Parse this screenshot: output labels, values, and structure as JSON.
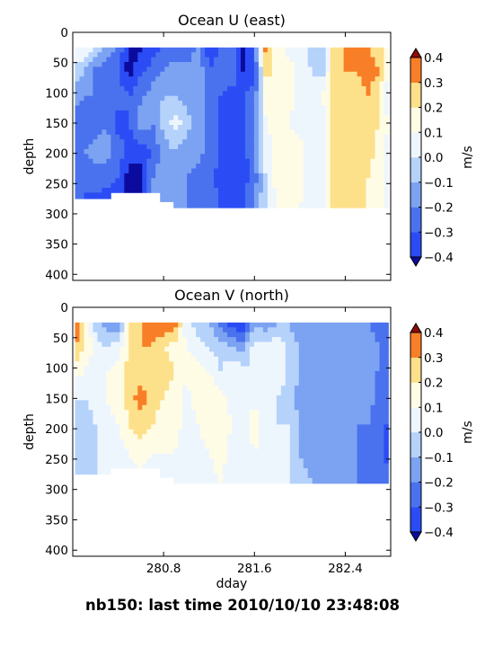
{
  "footer_text": "nb150: last time 2010/10/10 23:48:08",
  "colormap": [
    "#2b4cf5",
    "#4a72ee",
    "#7ca2f2",
    "#b5d2fb",
    "#eef6fd",
    "#fffce6",
    "#fde08a",
    "#fdb64f",
    "#f87f27",
    "#e64614"
  ],
  "colormap_under": "#0b0b9e",
  "colormap_over": "#8e0c0c",
  "chart_data": [
    {
      "type": "heatmap",
      "title": "Ocean U (east)",
      "xlabel": "",
      "ylabel": "depth",
      "xlim": [
        280.0,
        282.8
      ],
      "ylim": [
        410,
        0
      ],
      "x_ticks": [
        280.8,
        281.6,
        282.4
      ],
      "x_tick_labels": [
        "",
        "",
        ""
      ],
      "y_ticks": [
        0,
        50,
        100,
        150,
        200,
        250,
        300,
        350,
        400
      ],
      "colorbar": {
        "label": "m/s",
        "levels": [
          -0.4,
          -0.3,
          -0.2,
          -0.1,
          0.0,
          0.1,
          0.2,
          0.3,
          0.4
        ],
        "extend": "both",
        "tick_labels": [
          "−0.4",
          "−0.3",
          "−0.2",
          "−0.1",
          "0.0",
          "0.1",
          "0.2",
          "0.3",
          "0.4"
        ]
      },
      "x_range_with_data": [
        280.02,
        282.78
      ],
      "depth_top": 25,
      "bottom_depth": [
        [
          280.0,
          275
        ],
        [
          280.3,
          275
        ],
        [
          280.32,
          265
        ],
        [
          280.7,
          265
        ],
        [
          280.75,
          280
        ],
        [
          280.9,
          290
        ],
        [
          281.3,
          290
        ],
        [
          281.5,
          290
        ],
        [
          282.0,
          290
        ],
        [
          282.5,
          290
        ],
        [
          282.8,
          290
        ]
      ],
      "samples": [
        {
          "x": 280.0,
          "z": [
            0.0,
            0.0,
            -0.15,
            -0.25,
            -0.28,
            -0.25,
            -0.3
          ]
        },
        {
          "x": 280.1,
          "z": [
            0.15,
            -0.1,
            -0.2,
            -0.3,
            -0.2,
            -0.3,
            -0.3
          ]
        },
        {
          "x": 280.2,
          "z": [
            0.0,
            -0.25,
            -0.2,
            -0.25,
            -0.15,
            -0.25,
            -0.35
          ]
        },
        {
          "x": 280.3,
          "z": [
            -0.15,
            -0.25,
            -0.3,
            -0.2,
            -0.15,
            -0.25,
            -0.4
          ]
        },
        {
          "x": 280.4,
          "z": [
            -0.2,
            -0.3,
            -0.25,
            -0.35,
            -0.25,
            -0.3,
            -0.4
          ]
        },
        {
          "x": 280.5,
          "z": [
            -0.45,
            -0.45,
            -0.3,
            -0.3,
            -0.35,
            -0.45,
            -0.45
          ]
        },
        {
          "x": 280.6,
          "z": [
            -0.42,
            -0.32,
            -0.22,
            -0.12,
            -0.35,
            -0.45,
            -0.35
          ]
        },
        {
          "x": 280.7,
          "z": [
            -0.35,
            -0.25,
            -0.15,
            -0.2,
            -0.3,
            -0.2,
            -0.2
          ]
        },
        {
          "x": 280.8,
          "z": [
            -0.3,
            -0.2,
            -0.1,
            -0.05,
            -0.15,
            -0.15,
            -0.15
          ]
        },
        {
          "x": 280.9,
          "z": [
            -0.25,
            -0.15,
            -0.1,
            0.05,
            -0.1,
            -0.15,
            -0.2
          ]
        },
        {
          "x": 281.0,
          "z": [
            -0.3,
            -0.15,
            -0.15,
            -0.05,
            -0.15,
            -0.2,
            -0.2
          ]
        },
        {
          "x": 281.1,
          "z": [
            -0.2,
            -0.1,
            -0.12,
            -0.15,
            -0.15,
            -0.25,
            -0.2
          ]
        },
        {
          "x": 281.2,
          "z": [
            -0.35,
            -0.3,
            -0.25,
            -0.25,
            -0.25,
            -0.25,
            -0.25
          ]
        },
        {
          "x": 281.3,
          "z": [
            -0.3,
            -0.25,
            -0.3,
            -0.3,
            -0.3,
            -0.35,
            -0.3
          ]
        },
        {
          "x": 281.4,
          "z": [
            -0.25,
            -0.2,
            -0.35,
            -0.35,
            -0.35,
            -0.4,
            -0.3
          ]
        },
        {
          "x": 281.5,
          "z": [
            -0.45,
            -0.4,
            -0.3,
            -0.35,
            -0.35,
            -0.35,
            -0.3
          ]
        },
        {
          "x": 281.6,
          "z": [
            -0.25,
            -0.35,
            -0.25,
            -0.2,
            -0.2,
            -0.25,
            -0.2
          ]
        },
        {
          "x": 281.7,
          "z": [
            0.35,
            0.25,
            0.15,
            0.1,
            0.05,
            0.0,
            0.0
          ]
        },
        {
          "x": 281.8,
          "z": [
            0.15,
            0.15,
            0.15,
            0.15,
            0.12,
            0.15,
            0.1
          ]
        },
        {
          "x": 281.9,
          "z": [
            0.05,
            0.15,
            0.15,
            0.1,
            0.15,
            0.15,
            0.15
          ]
        },
        {
          "x": 282.0,
          "z": [
            0.1,
            0.05,
            0.05,
            0.05,
            0.15,
            0.15,
            0.1
          ]
        },
        {
          "x": 282.1,
          "z": [
            -0.05,
            0.0,
            0.05,
            0.05,
            0.0,
            0.05,
            0.05
          ]
        },
        {
          "x": 282.2,
          "z": [
            -0.1,
            -0.05,
            0.1,
            0.05,
            0.05,
            0.0,
            0.0
          ]
        },
        {
          "x": 282.3,
          "z": [
            0.3,
            0.25,
            0.3,
            0.25,
            0.25,
            0.25,
            0.25
          ]
        },
        {
          "x": 282.4,
          "z": [
            0.3,
            0.3,
            0.25,
            0.25,
            0.25,
            0.25,
            0.25
          ]
        },
        {
          "x": 282.5,
          "z": [
            0.35,
            0.3,
            0.25,
            0.25,
            0.25,
            0.25,
            0.2
          ]
        },
        {
          "x": 282.6,
          "z": [
            0.3,
            0.35,
            0.3,
            0.25,
            0.25,
            0.2,
            0.2
          ]
        },
        {
          "x": 282.7,
          "z": [
            0.25,
            0.3,
            0.2,
            0.2,
            0.15,
            0.15,
            0.15
          ]
        },
        {
          "x": 282.8,
          "z": [
            0.05,
            0.0,
            0.0,
            0.05,
            0.05,
            0.05,
            0.05
          ]
        }
      ],
      "sample_depths": [
        25,
        65,
        105,
        150,
        195,
        240,
        290
      ]
    },
    {
      "type": "heatmap",
      "title": "Ocean V (north)",
      "xlabel": "dday",
      "ylabel": "depth",
      "xlim": [
        280.0,
        282.8
      ],
      "ylim": [
        410,
        0
      ],
      "x_ticks": [
        280.8,
        281.6,
        282.4
      ],
      "x_tick_labels": [
        "280.8",
        "281.6",
        "282.4"
      ],
      "y_ticks": [
        0,
        50,
        100,
        150,
        200,
        250,
        300,
        350,
        400
      ],
      "colorbar": {
        "label": "m/s",
        "levels": [
          -0.4,
          -0.3,
          -0.2,
          -0.1,
          0.0,
          0.1,
          0.2,
          0.3,
          0.4
        ],
        "extend": "both",
        "tick_labels": [
          "−0.4",
          "−0.3",
          "−0.2",
          "−0.1",
          "0.0",
          "0.1",
          "0.2",
          "0.3",
          "0.4"
        ]
      },
      "x_range_with_data": [
        280.02,
        282.78
      ],
      "depth_top": 25,
      "bottom_depth": [
        [
          280.0,
          275
        ],
        [
          280.3,
          275
        ],
        [
          280.32,
          265
        ],
        [
          280.7,
          265
        ],
        [
          280.75,
          280
        ],
        [
          280.9,
          290
        ],
        [
          281.3,
          290
        ],
        [
          281.5,
          290
        ],
        [
          282.0,
          290
        ],
        [
          282.5,
          290
        ],
        [
          282.8,
          290
        ]
      ],
      "samples": [
        {
          "x": 280.0,
          "z": [
            0.4,
            0.35,
            0.15,
            0.0,
            -0.05,
            -0.1,
            -0.05
          ]
        },
        {
          "x": 280.1,
          "z": [
            0.25,
            0.2,
            0.1,
            0.0,
            -0.1,
            0.0,
            0.0
          ]
        },
        {
          "x": 280.2,
          "z": [
            -0.05,
            0.05,
            0.05,
            0.05,
            0.0,
            0.0,
            0.0
          ]
        },
        {
          "x": 280.3,
          "z": [
            -0.15,
            0.0,
            0.1,
            0.1,
            0.05,
            0.05,
            0.0
          ]
        },
        {
          "x": 280.4,
          "z": [
            -0.2,
            0.05,
            0.15,
            0.15,
            0.1,
            0.05,
            0.0
          ]
        },
        {
          "x": 280.5,
          "z": [
            0.2,
            0.2,
            0.25,
            0.25,
            0.2,
            0.1,
            0.05
          ]
        },
        {
          "x": 280.6,
          "z": [
            0.3,
            0.3,
            0.25,
            0.35,
            0.25,
            0.15,
            0.05
          ]
        },
        {
          "x": 280.7,
          "z": [
            0.35,
            0.3,
            0.3,
            0.25,
            0.2,
            0.1,
            0.05
          ]
        },
        {
          "x": 280.8,
          "z": [
            0.4,
            0.2,
            0.25,
            0.2,
            0.15,
            0.1,
            0.05
          ]
        },
        {
          "x": 280.9,
          "z": [
            0.35,
            0.15,
            0.2,
            0.15,
            0.15,
            0.1,
            0.1
          ]
        },
        {
          "x": 281.0,
          "z": [
            0.05,
            0.1,
            0.15,
            0.05,
            0.05,
            0.05,
            0.0
          ]
        },
        {
          "x": 281.1,
          "z": [
            -0.05,
            0.05,
            0.15,
            0.15,
            0.1,
            0.05,
            0.05
          ]
        },
        {
          "x": 281.2,
          "z": [
            -0.1,
            0.0,
            0.1,
            0.2,
            0.15,
            0.1,
            0.05
          ]
        },
        {
          "x": 281.3,
          "z": [
            -0.25,
            -0.05,
            0.0,
            0.15,
            0.2,
            0.15,
            0.1
          ]
        },
        {
          "x": 281.4,
          "z": [
            -0.35,
            -0.1,
            0.1,
            0.05,
            0.1,
            0.05,
            0.05
          ]
        },
        {
          "x": 281.5,
          "z": [
            -0.4,
            -0.15,
            0.05,
            0.0,
            0.05,
            0.05,
            0.0
          ]
        },
        {
          "x": 281.6,
          "z": [
            -0.1,
            0.05,
            0.0,
            0.1,
            0.15,
            0.1,
            0.05
          ]
        },
        {
          "x": 281.7,
          "z": [
            -0.2,
            0.05,
            0.0,
            0.0,
            0.05,
            0.05,
            0.05
          ]
        },
        {
          "x": 281.8,
          "z": [
            -0.1,
            0.1,
            0.05,
            0.0,
            0.0,
            0.05,
            0.05
          ]
        },
        {
          "x": 281.9,
          "z": [
            -0.1,
            -0.05,
            0.0,
            -0.05,
            0.0,
            0.0,
            0.0
          ]
        },
        {
          "x": 282.0,
          "z": [
            -0.15,
            -0.1,
            -0.1,
            -0.15,
            -0.1,
            -0.1,
            -0.05
          ]
        },
        {
          "x": 282.1,
          "z": [
            -0.15,
            -0.15,
            -0.1,
            -0.1,
            -0.15,
            -0.15,
            -0.1
          ]
        },
        {
          "x": 282.2,
          "z": [
            -0.2,
            -0.15,
            -0.15,
            -0.1,
            -0.1,
            -0.15,
            -0.1
          ]
        },
        {
          "x": 282.3,
          "z": [
            -0.15,
            -0.1,
            -0.2,
            -0.15,
            -0.15,
            -0.15,
            -0.15
          ]
        },
        {
          "x": 282.4,
          "z": [
            -0.2,
            -0.15,
            -0.15,
            -0.2,
            -0.15,
            -0.2,
            -0.15
          ]
        },
        {
          "x": 282.5,
          "z": [
            -0.15,
            -0.2,
            -0.15,
            -0.2,
            -0.2,
            -0.2,
            -0.2
          ]
        },
        {
          "x": 282.6,
          "z": [
            -0.2,
            -0.15,
            -0.2,
            -0.15,
            -0.2,
            -0.25,
            -0.2
          ]
        },
        {
          "x": 282.7,
          "z": [
            -0.25,
            -0.2,
            -0.2,
            -0.25,
            -0.3,
            -0.25,
            -0.25
          ]
        },
        {
          "x": 282.8,
          "z": [
            -0.2,
            -0.25,
            -0.25,
            -0.25,
            -0.3,
            -0.35,
            -0.3
          ]
        }
      ],
      "sample_depths": [
        25,
        65,
        105,
        150,
        195,
        240,
        290
      ]
    }
  ]
}
